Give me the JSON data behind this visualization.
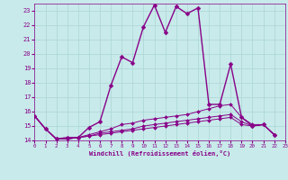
{
  "xlabel": "Windchill (Refroidissement éolien,°C)",
  "bg_color": "#c8eaea",
  "grid_color": "#b0d8d8",
  "line_color": "#880088",
  "xmin": 0,
  "xmax": 23,
  "ymin": 14,
  "ymax": 23.5,
  "yticks": [
    14,
    15,
    16,
    17,
    18,
    19,
    20,
    21,
    22,
    23
  ],
  "xticks": [
    0,
    1,
    2,
    3,
    4,
    5,
    6,
    7,
    8,
    9,
    10,
    11,
    12,
    13,
    14,
    15,
    16,
    17,
    18,
    19,
    20,
    21,
    22,
    23
  ],
  "curves": [
    {
      "x": [
        0,
        1,
        2,
        3,
        4,
        5,
        6,
        7,
        8,
        9,
        10,
        11,
        12,
        13,
        14,
        15,
        16,
        17,
        18,
        19,
        20,
        21,
        22
      ],
      "y": [
        15.7,
        14.8,
        14.1,
        14.2,
        14.2,
        14.9,
        15.3,
        17.8,
        19.8,
        19.4,
        21.9,
        23.4,
        21.5,
        23.3,
        22.8,
        23.2,
        16.5,
        16.5,
        19.3,
        15.6,
        15.0,
        15.1,
        14.4
      ]
    },
    {
      "x": [
        0,
        1,
        2,
        3,
        4,
        5,
        6,
        7,
        8,
        9,
        10,
        11,
        12,
        13,
        14,
        15,
        16,
        17,
        18,
        19,
        20,
        21,
        22
      ],
      "y": [
        15.7,
        14.8,
        14.1,
        14.1,
        14.2,
        14.4,
        14.6,
        14.8,
        15.1,
        15.2,
        15.4,
        15.5,
        15.6,
        15.7,
        15.8,
        16.0,
        16.2,
        16.4,
        16.5,
        15.6,
        15.1,
        15.1,
        14.4
      ]
    },
    {
      "x": [
        0,
        1,
        2,
        3,
        4,
        5,
        6,
        7,
        8,
        9,
        10,
        11,
        12,
        13,
        14,
        15,
        16,
        17,
        18,
        19,
        20,
        21,
        22
      ],
      "y": [
        15.7,
        14.8,
        14.1,
        14.1,
        14.2,
        14.3,
        14.5,
        14.6,
        14.7,
        14.8,
        15.0,
        15.1,
        15.2,
        15.3,
        15.4,
        15.5,
        15.6,
        15.7,
        15.8,
        15.3,
        15.0,
        15.1,
        14.4
      ]
    },
    {
      "x": [
        0,
        1,
        2,
        3,
        4,
        5,
        6,
        7,
        8,
        9,
        10,
        11,
        12,
        13,
        14,
        15,
        16,
        17,
        18,
        19,
        20,
        21,
        22
      ],
      "y": [
        15.7,
        14.8,
        14.1,
        14.1,
        14.2,
        14.3,
        14.4,
        14.5,
        14.6,
        14.7,
        14.8,
        14.9,
        15.0,
        15.1,
        15.2,
        15.3,
        15.4,
        15.5,
        15.6,
        15.1,
        15.0,
        15.1,
        14.4
      ]
    }
  ]
}
